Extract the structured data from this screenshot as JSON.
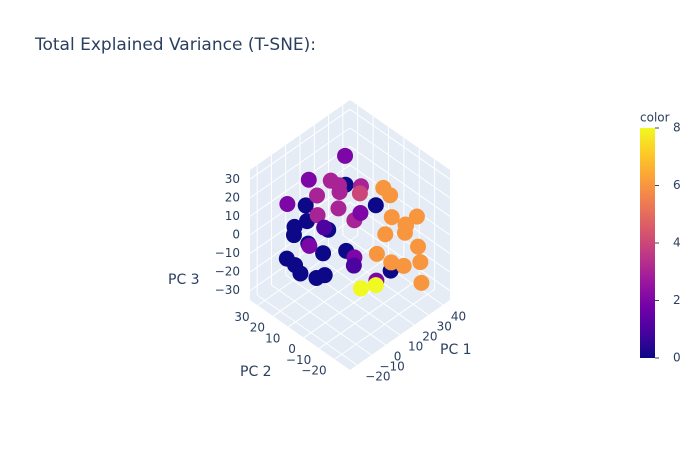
{
  "chart_data": {
    "type": "scatter3d",
    "title": "Total Explained Variance (T-SNE):",
    "xlabel": "PC 1",
    "ylabel": "PC 2",
    "zlabel": "PC 3",
    "x": [
      -10,
      -5,
      -15,
      0,
      -8,
      5,
      -12,
      0,
      10,
      -5,
      15,
      20,
      5,
      -10,
      25,
      10,
      30,
      35,
      25,
      30,
      20,
      35,
      28,
      15,
      32,
      22,
      18,
      38,
      10,
      25,
      -5,
      5,
      10,
      0,
      15,
      -10,
      5,
      10,
      -15,
      0,
      20,
      15,
      5,
      -5,
      20,
      15,
      20,
      0,
      10,
      25
    ],
    "y": [
      20,
      25,
      15,
      22,
      18,
      25,
      10,
      15,
      20,
      5,
      10,
      -5,
      12,
      25,
      -10,
      5,
      -15,
      -10,
      -20,
      -5,
      -15,
      -20,
      -25,
      -20,
      0,
      -8,
      -25,
      -15,
      -15,
      -30,
      10,
      5,
      15,
      0,
      0,
      5,
      -5,
      10,
      20,
      20,
      5,
      -10,
      -5,
      15,
      15,
      0,
      -5,
      10,
      0,
      10
    ],
    "z": [
      5,
      -5,
      -10,
      10,
      -20,
      -15,
      15,
      -25,
      -20,
      -15,
      20,
      15,
      0,
      -15,
      -20,
      -10,
      5,
      -5,
      10,
      15,
      -10,
      -15,
      0,
      20,
      -10,
      25,
      -5,
      5,
      0,
      -15,
      25,
      28,
      22,
      30,
      25,
      20,
      15,
      10,
      20,
      25,
      5,
      -20,
      -5,
      -5,
      30,
      -30,
      -28,
      5,
      -15,
      10
    ],
    "color": [
      0,
      0,
      0,
      0,
      0,
      0,
      0,
      0,
      0,
      0,
      0,
      0,
      0,
      0,
      0,
      0,
      6,
      6,
      6,
      6,
      6,
      6,
      6,
      6,
      6,
      6,
      6,
      6,
      6,
      6,
      3,
      3,
      3,
      3,
      3,
      3,
      3,
      3,
      2,
      2,
      2,
      2,
      2,
      2,
      2,
      8,
      8,
      1,
      1,
      4
    ],
    "xlim": [
      -25,
      45
    ],
    "ylim": [
      -30,
      35
    ],
    "zlim": [
      -35,
      35
    ],
    "xticks": [
      {
        "value": -20,
        "label": "−20"
      },
      {
        "value": -10,
        "label": "−10"
      },
      0,
      10,
      20,
      30,
      40
    ],
    "yticks": [
      {
        "value": -20,
        "label": "−20"
      },
      {
        "value": -10,
        "label": "−10"
      },
      0,
      10,
      20,
      30
    ],
    "zticks": [
      {
        "value": -30,
        "label": "−30"
      },
      {
        "value": -20,
        "label": "−20"
      },
      {
        "value": -10,
        "label": "−10"
      },
      0,
      10,
      20,
      30
    ],
    "colorbar_title": "color",
    "clim": [
      0,
      8
    ],
    "cticks": [
      0,
      2,
      4,
      6,
      8
    ],
    "colorscale": [
      "#0d0887",
      "#46039f",
      "#7201a8",
      "#9c179e",
      "#bd3786",
      "#d8576b",
      "#ed7953",
      "#fb9f3a",
      "#fdca26",
      "#f0f921"
    ]
  }
}
